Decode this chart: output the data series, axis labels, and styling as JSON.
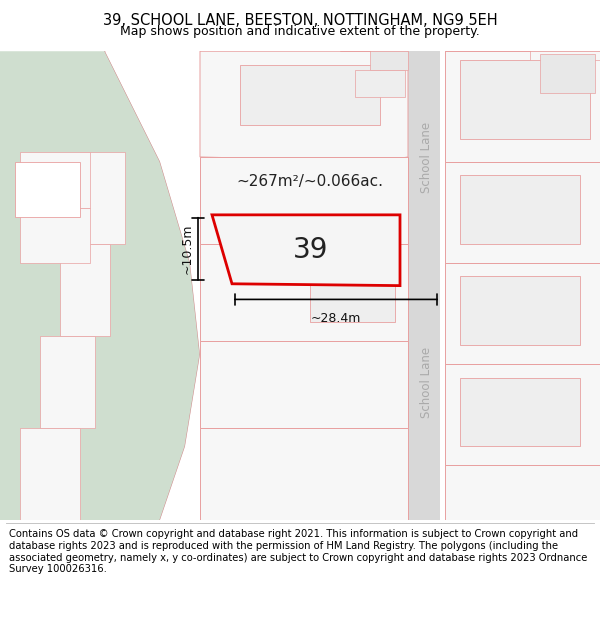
{
  "title": "39, SCHOOL LANE, BEESTON, NOTTINGHAM, NG9 5EH",
  "subtitle": "Map shows position and indicative extent of the property.",
  "footer": "Contains OS data © Crown copyright and database right 2021. This information is subject to Crown copyright and database rights 2023 and is reproduced with the permission of HM Land Registry. The polygons (including the associated geometry, namely x, y co-ordinates) are subject to Crown copyright and database rights 2023 Ordnance Survey 100026316.",
  "map_bg": "#ffffff",
  "parcel_fill": "#f7f7f7",
  "parcel_edge": "#e8a0a0",
  "inner_fill": "#eeeeee",
  "highlight_fill": "#f5f5f5",
  "highlight_edge": "#dd0000",
  "green_color": "#cfdecf",
  "road_color": "#d8d8d8",
  "school_lane_text_color": "#aaaaaa",
  "area_text": "~267m²/~0.066ac.",
  "number_text": "39",
  "width_text": "~28.4m",
  "height_text": "~10.5m",
  "title_fontsize": 10.5,
  "subtitle_fontsize": 9,
  "footer_fontsize": 7.2,
  "annotation_fontsize": 9,
  "area_fontsize": 11,
  "number_fontsize": 20
}
